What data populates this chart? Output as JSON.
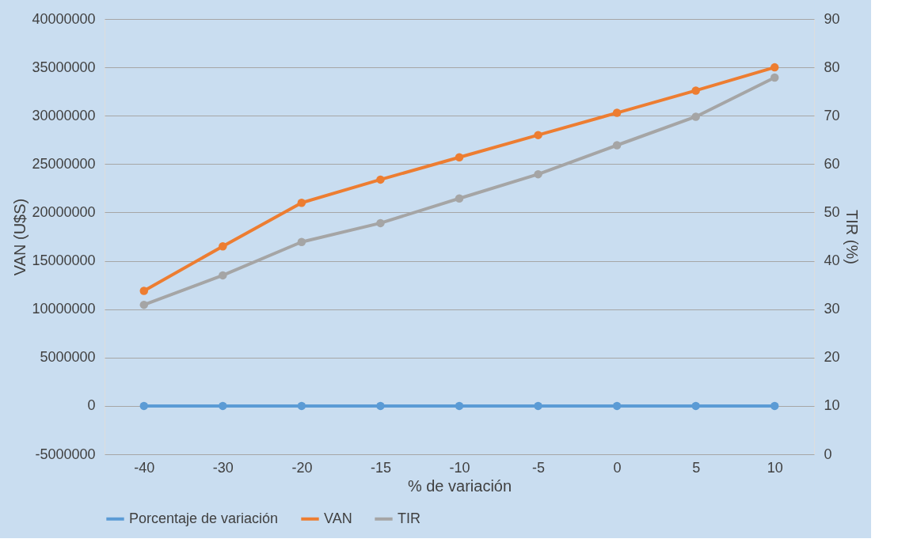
{
  "chart_data": {
    "type": "line",
    "xlabel": "% de variación",
    "ylabel": "VAN (U$S)",
    "y2label": "TIR (%)",
    "categories": [
      "-40",
      "-30",
      "-20",
      "-15",
      "-10",
      "-5",
      "0",
      "5",
      "10"
    ],
    "series": [
      {
        "name": "Porcentaje de variación",
        "color": "#5b9bd5",
        "values": [
          0,
          0,
          0,
          0,
          0,
          0,
          0,
          0,
          0
        ]
      },
      {
        "name": "VAN",
        "color": "#ed7d31",
        "values": [
          11900000,
          16500000,
          21000000,
          23400000,
          25700000,
          28000000,
          30300000,
          32600000,
          35000000
        ]
      },
      {
        "name": "TIR",
        "color": "#a5a5a5",
        "axis": "y2",
        "values": [
          30.9,
          37,
          43.9,
          47.8,
          52.9,
          57.9,
          63.9,
          69.8,
          77.9
        ]
      }
    ],
    "ylim": [
      -5000000,
      40000000
    ],
    "yticks": [
      -5000000,
      0,
      5000000,
      10000000,
      15000000,
      20000000,
      25000000,
      30000000,
      35000000,
      40000000
    ],
    "y2lim": [
      0,
      90
    ],
    "y2ticks": [
      0,
      10,
      20,
      30,
      40,
      50,
      60,
      70,
      80,
      90
    ],
    "grid": "y",
    "legend": "bottom",
    "marker": "circle",
    "line_style": "solid"
  }
}
